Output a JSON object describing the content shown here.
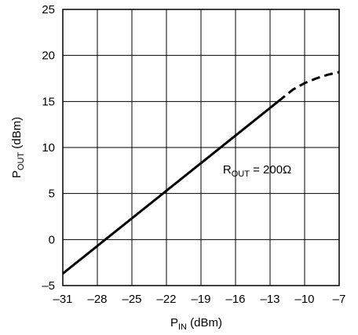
{
  "chart_data": {
    "type": "line",
    "xlabel": {
      "main": "P",
      "sub": "IN",
      "rest": " (dBm)"
    },
    "ylabel": {
      "main": "P",
      "sub": "OUT",
      "rest": " (dBm)"
    },
    "xlim": [
      -31,
      -7
    ],
    "ylim": [
      -5,
      25
    ],
    "xticks": [
      -31,
      -28,
      -25,
      -22,
      -19,
      -16,
      -13,
      -10,
      -7
    ],
    "yticks": [
      -5,
      0,
      5,
      10,
      15,
      20,
      25
    ],
    "xtick_labels": [
      "–31",
      "–28",
      "–25",
      "–22",
      "–19",
      "–16",
      "–13",
      "–10",
      "–7"
    ],
    "ytick_labels": [
      "–5",
      "0",
      "5",
      "10",
      "15",
      "20",
      "25"
    ],
    "grid": true,
    "series": [
      {
        "style": "solid",
        "x": [
          -31,
          -12.3
        ],
        "y": [
          -3.7,
          15.0
        ]
      },
      {
        "style": "dashed",
        "x": [
          -12.3,
          -11,
          -10,
          -9,
          -8,
          -7
        ],
        "y": [
          15.0,
          16.3,
          17.0,
          17.5,
          17.9,
          18.2
        ]
      }
    ],
    "annotations": [
      {
        "main": "R",
        "sub": "OUT",
        "rest": " = 200Ω",
        "x": -17.1,
        "y": 7.2
      }
    ]
  }
}
